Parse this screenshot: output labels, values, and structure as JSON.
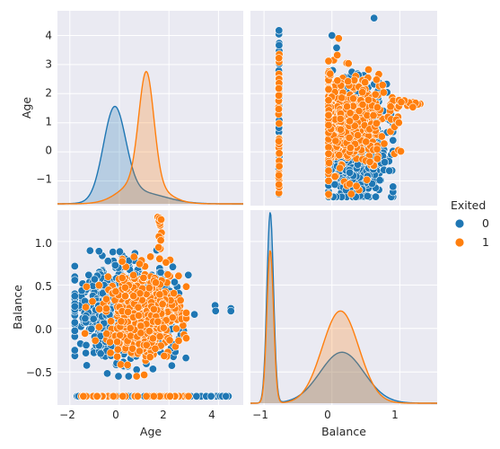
{
  "chart_data": {
    "type": "pairplot",
    "variables": [
      "Age",
      "Balance"
    ],
    "hue": "Exited",
    "legend": {
      "title": "Exited",
      "position": "right",
      "entries": [
        {
          "label": "0",
          "color": "#1f77b4"
        },
        {
          "label": "1",
          "color": "#ff7f0e"
        }
      ]
    },
    "axes": {
      "Age": {
        "range": [
          -2.5,
          5.0
        ],
        "ticks": [
          -2,
          0,
          2,
          4
        ],
        "y_range": [
          -1.85,
          4.85
        ],
        "y_ticks": [
          -1,
          0,
          1,
          2,
          3,
          4
        ]
      },
      "Balance": {
        "range": [
          -1.2,
          1.55
        ],
        "ticks": [
          -1,
          0,
          1
        ],
        "y_range": [
          -0.88,
          1.36
        ],
        "y_ticks": [
          -0.5,
          0.0,
          0.5,
          1.0
        ],
        "y_tick_labels": [
          "−0.5",
          "0.0",
          "0.5",
          "1.0"
        ]
      }
    },
    "tick_labels": {
      "age_x": [
        "−2",
        "0",
        "2",
        "4"
      ],
      "age_y": [
        "−1",
        "0",
        "1",
        "2",
        "3",
        "4"
      ],
      "balance_x": [
        "−1",
        "0",
        "1"
      ]
    },
    "panels": [
      {
        "row": "Age",
        "col": "Age",
        "kind": "kde",
        "series": [
          {
            "name": "0",
            "components": [
              {
                "w": 0.78,
                "mu": -0.05,
                "sd": 0.42
              },
              {
                "w": 0.22,
                "mu": 0.9,
                "sd": 0.95
              }
            ],
            "peak_density": 3.35
          },
          {
            "name": "1",
            "components": [
              {
                "w": 0.62,
                "mu": 1.15,
                "sd": 0.28
              },
              {
                "w": 0.38,
                "mu": 1.0,
                "sd": 0.75
              }
            ],
            "peak_density": 4.55
          }
        ]
      },
      {
        "row": "Age",
        "col": "Balance",
        "kind": "scatter",
        "series": [
          {
            "name": "0",
            "x_range": [
              -0.85,
              0.95
            ],
            "y_range": [
              -1.55,
              4.3
            ],
            "dense_x": -0.78,
            "dense_y_range": [
              -1.5,
              4.2
            ],
            "outliers": [
              [
                0.62,
                4.6
              ],
              [
                0.0,
                4.0
              ],
              [
                0.9,
                -1.2
              ]
            ]
          },
          {
            "name": "1",
            "x_range": [
              -0.85,
              1.3
            ],
            "y_range": [
              -1.5,
              3.9
            ],
            "dense_x": -0.78,
            "dense_y_range": [
              -1.5,
              3.9
            ],
            "outliers": [
              [
                1.3,
                1.65
              ],
              [
                1.2,
                1.7
              ],
              [
                0.1,
                3.9
              ]
            ]
          }
        ]
      },
      {
        "row": "Balance",
        "col": "Age",
        "kind": "scatter",
        "series": [
          {
            "name": "0",
            "x_range": [
              -1.8,
              4.5
            ],
            "y_range": [
              -0.78,
              0.75
            ],
            "dense_y": -0.78,
            "outliers": [
              [
                4.5,
                0.23
              ],
              [
                4.5,
                0.2
              ],
              [
                3.7,
                -0.78
              ],
              [
                4.3,
                -0.78
              ]
            ]
          },
          {
            "name": "1",
            "x_range": [
              -1.6,
              3.0
            ],
            "y_range": [
              -0.78,
              1.28
            ],
            "dense_y": -0.78,
            "outliers": [
              [
                1.55,
                1.28
              ],
              [
                1.65,
                1.2
              ],
              [
                1.7,
                1.1
              ]
            ]
          }
        ]
      },
      {
        "row": "Balance",
        "col": "Balance",
        "kind": "kde",
        "series": [
          {
            "name": "0",
            "components": [
              {
                "w": 0.36,
                "mu": -0.78,
                "sd": 0.045
              },
              {
                "w": 0.64,
                "mu": 0.2,
                "sd": 0.3
              }
            ],
            "peak_density": 1.25
          },
          {
            "name": "1",
            "components": [
              {
                "w": 0.23,
                "mu": -0.78,
                "sd": 0.045
              },
              {
                "w": 0.77,
                "mu": 0.18,
                "sd": 0.25
              }
            ],
            "peak_density": 1.0
          }
        ]
      }
    ],
    "grid": true,
    "background": "#eaeaf2"
  }
}
